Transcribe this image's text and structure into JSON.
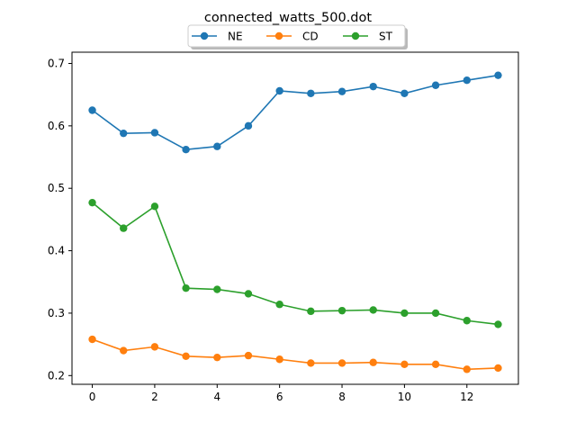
{
  "chart_data": {
    "type": "line",
    "title": "connected_watts_500.dot",
    "xlabel": "",
    "ylabel": "",
    "x": [
      0,
      1,
      2,
      3,
      4,
      5,
      6,
      7,
      8,
      9,
      10,
      11,
      12,
      13
    ],
    "xlim": [
      -0.65,
      13.65
    ],
    "ylim": [
      0.186,
      0.718
    ],
    "xticks": [
      0,
      2,
      4,
      6,
      8,
      10,
      12
    ],
    "yticks": [
      0.2,
      0.3,
      0.4,
      0.5,
      0.6,
      0.7
    ],
    "xtick_labels": [
      "0",
      "2",
      "4",
      "6",
      "8",
      "10",
      "12"
    ],
    "ytick_labels": [
      "0.2",
      "0.3",
      "0.4",
      "0.5",
      "0.6",
      "0.7"
    ],
    "grid": false,
    "legend_position": "top-center",
    "series": [
      {
        "name": "NE",
        "color": "#1f77b4",
        "values": [
          0.625,
          0.588,
          0.589,
          0.562,
          0.567,
          0.6,
          0.656,
          0.652,
          0.655,
          0.663,
          0.652,
          0.665,
          0.673,
          0.681
        ]
      },
      {
        "name": "CD",
        "color": "#ff7f0e",
        "values": [
          0.258,
          0.24,
          0.246,
          0.231,
          0.229,
          0.232,
          0.226,
          0.22,
          0.22,
          0.221,
          0.218,
          0.218,
          0.21,
          0.212
        ]
      },
      {
        "name": "ST",
        "color": "#2ca02c",
        "values": [
          0.477,
          0.436,
          0.471,
          0.34,
          0.338,
          0.331,
          0.314,
          0.303,
          0.304,
          0.305,
          0.3,
          0.3,
          0.288,
          0.282
        ]
      }
    ]
  }
}
